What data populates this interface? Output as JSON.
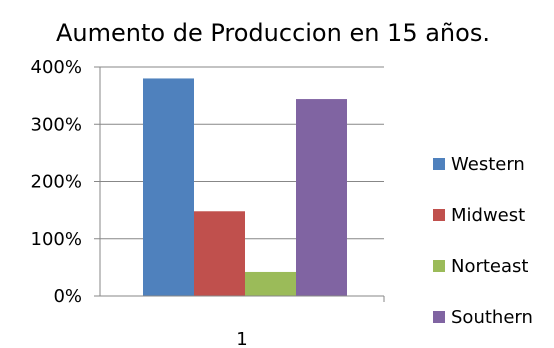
{
  "chart_data": {
    "type": "bar",
    "title": "Aumento de Produccion en 15 años.",
    "categories": [
      "1"
    ],
    "series": [
      {
        "name": "Western",
        "values": [
          380
        ],
        "color": "#4f81bd"
      },
      {
        "name": "Midwest",
        "values": [
          148
        ],
        "color": "#c0504d"
      },
      {
        "name": "Norteast",
        "values": [
          42
        ],
        "color": "#9bbb59"
      },
      {
        "name": "Southern",
        "values": [
          344
        ],
        "color": "#8064a2"
      }
    ],
    "yticks": [
      "0%",
      "100%",
      "200%",
      "300%",
      "400%"
    ],
    "ylim": [
      0,
      400
    ],
    "grid": true,
    "legend": "right",
    "xlabel": "",
    "ylabel": ""
  }
}
